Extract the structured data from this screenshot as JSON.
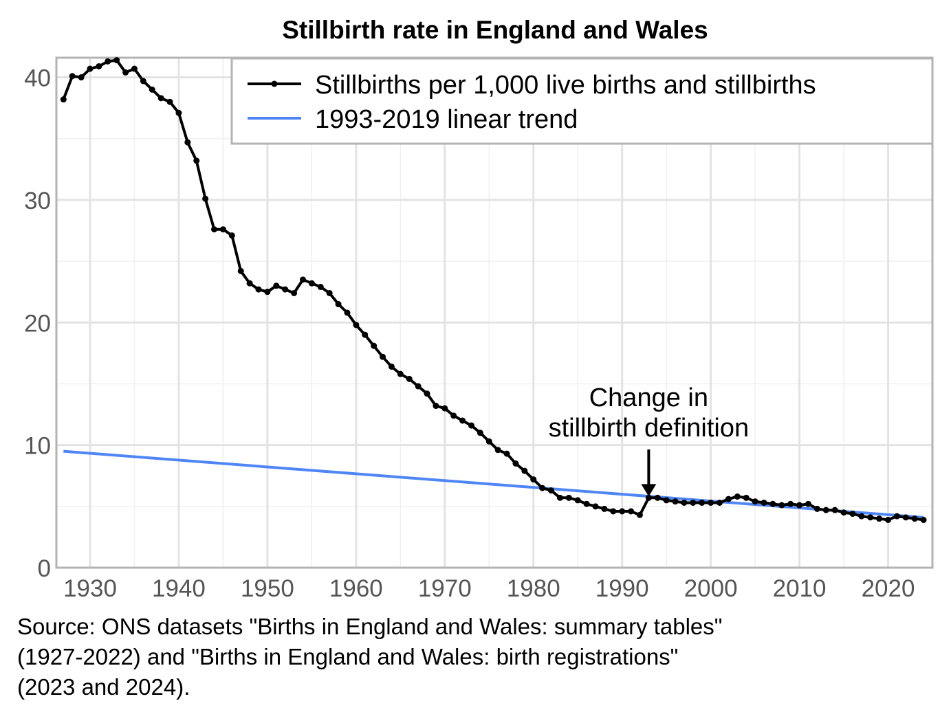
{
  "chart_data": {
    "type": "line",
    "title": "Stillbirth rate in England and Wales",
    "xlabel": "",
    "ylabel": "",
    "xlim": [
      1926.2,
      2025
    ],
    "ylim": [
      0,
      41.6
    ],
    "grid": true,
    "legend_position": "top-right",
    "x_ticks": [
      1930,
      1940,
      1950,
      1960,
      1970,
      1980,
      1990,
      2000,
      2010,
      2020
    ],
    "x_tick_labels": [
      "1930",
      "1940",
      "1950",
      "1960",
      "1970",
      "1980",
      "1990",
      "2000",
      "2010",
      "2020"
    ],
    "y_ticks": [
      0,
      10,
      20,
      30,
      40
    ],
    "y_tick_labels": [
      "0",
      "10",
      "20",
      "30",
      "40"
    ],
    "series": [
      {
        "name": "Stillbirths per 1,000 live births and stillbirths",
        "color": "#000000",
        "markers": true,
        "x": [
          1927,
          1928,
          1929,
          1930,
          1931,
          1932,
          1933,
          1934,
          1935,
          1936,
          1937,
          1938,
          1939,
          1940,
          1941,
          1942,
          1943,
          1944,
          1945,
          1946,
          1947,
          1948,
          1949,
          1950,
          1951,
          1952,
          1953,
          1954,
          1955,
          1956,
          1957,
          1958,
          1959,
          1960,
          1961,
          1962,
          1963,
          1964,
          1965,
          1966,
          1967,
          1968,
          1969,
          1970,
          1971,
          1972,
          1973,
          1974,
          1975,
          1976,
          1977,
          1978,
          1979,
          1980,
          1981,
          1982,
          1983,
          1984,
          1985,
          1986,
          1987,
          1988,
          1989,
          1990,
          1991,
          1992,
          1993,
          1994,
          1995,
          1996,
          1997,
          1998,
          1999,
          2000,
          2001,
          2002,
          2003,
          2004,
          2005,
          2006,
          2007,
          2008,
          2009,
          2010,
          2011,
          2012,
          2013,
          2014,
          2015,
          2016,
          2017,
          2018,
          2019,
          2020,
          2021,
          2022,
          2023,
          2024
        ],
        "values": [
          38.2,
          40.1,
          40.0,
          40.7,
          40.9,
          41.3,
          41.4,
          40.4,
          40.7,
          39.7,
          39.0,
          38.3,
          38.0,
          37.1,
          34.7,
          33.2,
          30.1,
          27.6,
          27.6,
          27.1,
          24.2,
          23.2,
          22.7,
          22.5,
          23.0,
          22.7,
          22.4,
          23.5,
          23.2,
          22.9,
          22.4,
          21.5,
          20.8,
          19.8,
          19.0,
          18.1,
          17.2,
          16.4,
          15.8,
          15.4,
          14.8,
          14.2,
          13.2,
          13.0,
          12.4,
          12.0,
          11.6,
          11.0,
          10.3,
          9.6,
          9.3,
          8.5,
          7.9,
          7.2,
          6.5,
          6.3,
          5.7,
          5.7,
          5.5,
          5.2,
          5.0,
          4.8,
          4.6,
          4.6,
          4.6,
          4.3,
          5.7,
          5.7,
          5.5,
          5.4,
          5.3,
          5.3,
          5.3,
          5.3,
          5.3,
          5.6,
          5.8,
          5.7,
          5.4,
          5.3,
          5.2,
          5.1,
          5.2,
          5.1,
          5.2,
          4.8,
          4.7,
          4.7,
          4.5,
          4.4,
          4.2,
          4.1,
          4.0,
          3.9,
          4.2,
          4.1,
          4.0,
          3.9
        ]
      },
      {
        "name": "1993-2019 linear trend",
        "color": "#4f86f7",
        "markers": false,
        "x": [
          1927,
          2024
        ],
        "values": [
          9.5,
          4.1
        ]
      }
    ],
    "annotations": [
      {
        "text_lines": [
          "Change in",
          "stillbirth definition"
        ],
        "arrow_to": {
          "x": 1993,
          "y": 5.7
        }
      }
    ]
  },
  "footer": {
    "source_lines": [
      "Source: ONS datasets \"Births in England and Wales: summary tables\"",
      "(1927-2022) and \"Births in England and Wales: birth registrations\"",
      "(2023 and 2024)."
    ]
  }
}
